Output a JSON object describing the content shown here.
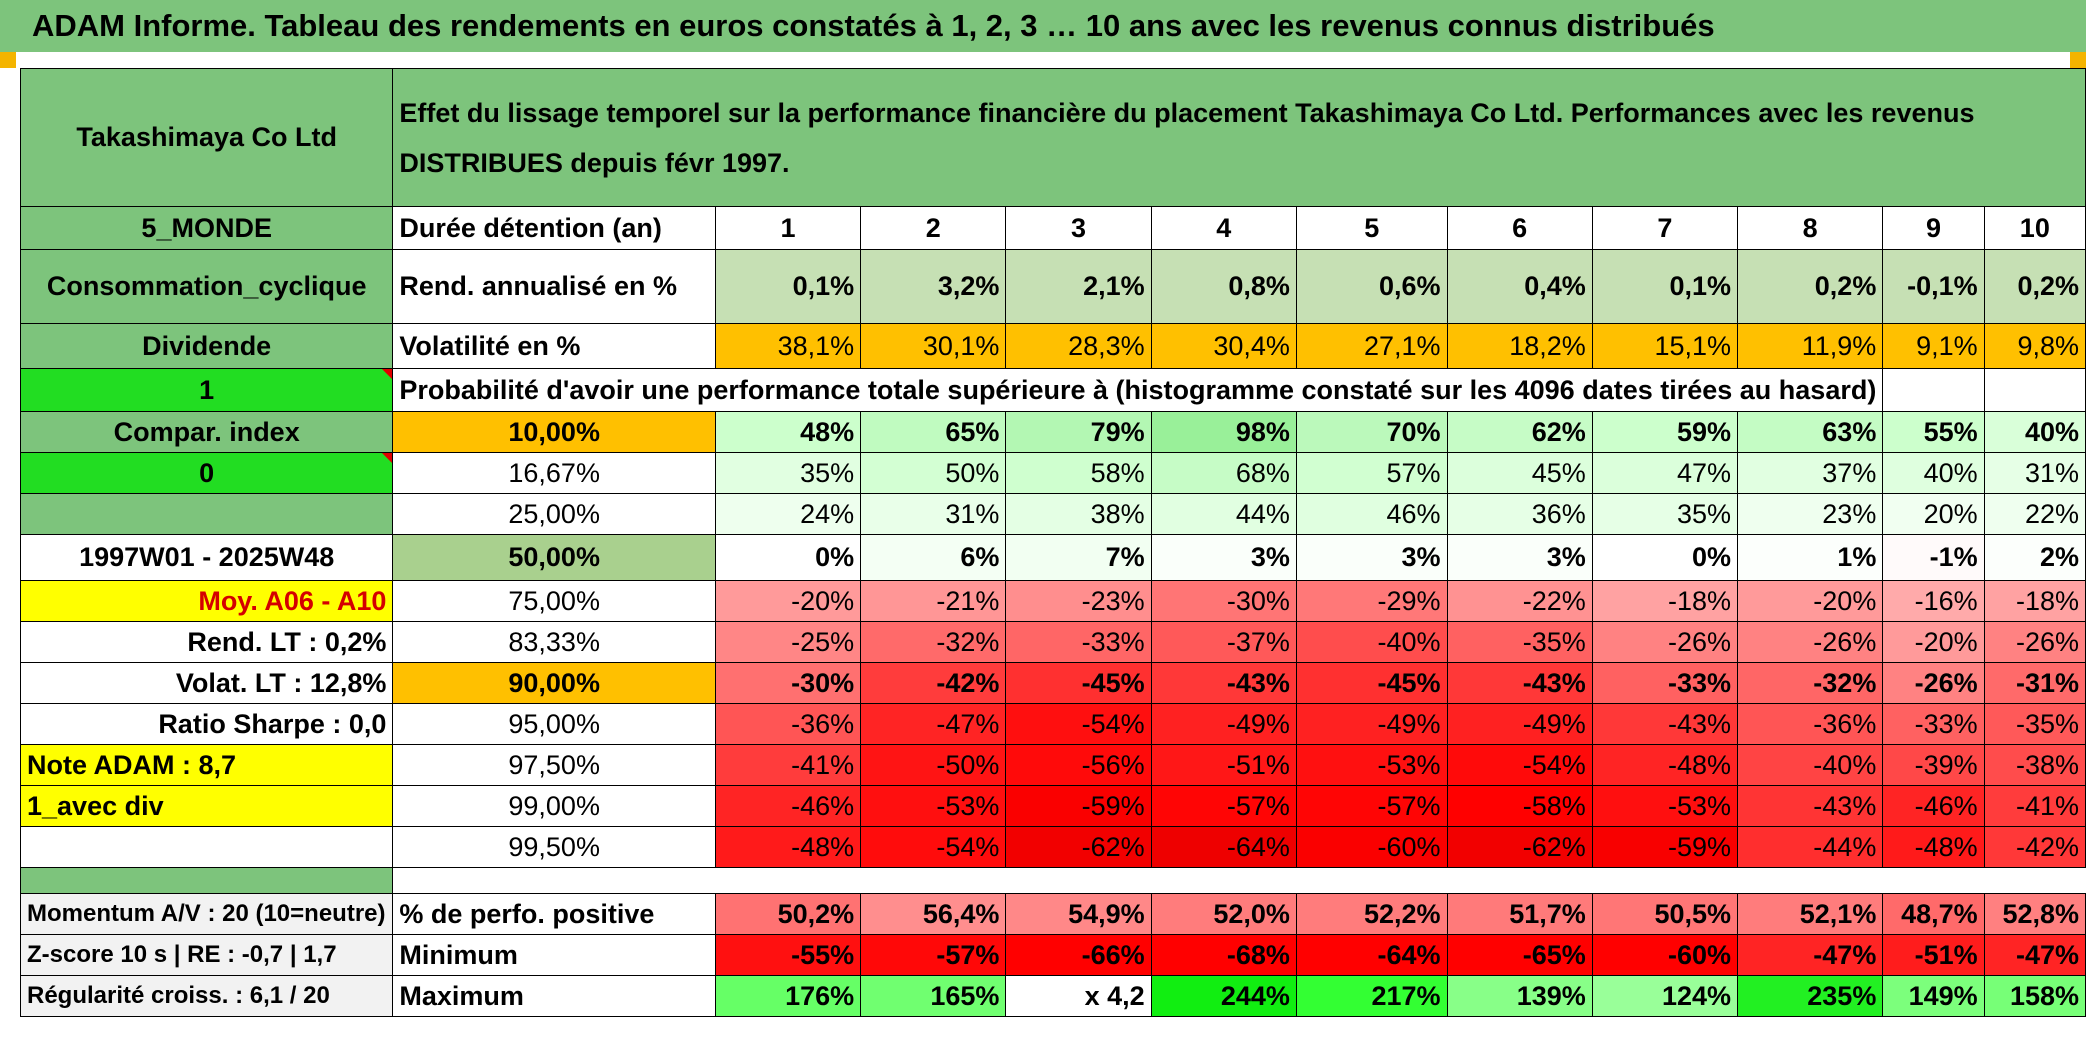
{
  "title": "ADAM Informe. Tableau des rendements en euros constatés à 1, 2, 3 … 10 ans avec les revenus connus distribués",
  "left": {
    "company": "Takashimaya Co Ltd",
    "zone": "5_MONDE",
    "sector": "Consommation_cyclique",
    "dividend_label": "Dividende",
    "flag1": "1",
    "compar": "Compar. index",
    "flag0": "0",
    "period": "1997W01 - 2025W48",
    "moy": "Moy. A06 - A10",
    "rend_lt": "Rend. LT :   0,2%",
    "volat_lt": "Volat. LT :   12,8%",
    "sharpe": "Ratio Sharpe :   0,0",
    "note": "Note ADAM : 8,7",
    "avec_div": "1_avec div",
    "momentum": "Momentum A/V : 20 (10=neutre)",
    "zscore": "Z-score 10 s | RE : -0,7 | 1,7",
    "regularite": "Régularité croiss. : 6,1 / 20"
  },
  "header": {
    "description": "Effet du lissage temporel sur la performance financière du placement Takashimaya Co Ltd. Performances avec les revenus DISTRIBUES depuis févr 1997.",
    "duree_label": "Durée détention (an)",
    "years": [
      "1",
      "2",
      "3",
      "4",
      "5",
      "6",
      "7",
      "8",
      "9",
      "10"
    ],
    "rend_label": "Rend. annualisé en %",
    "rend": [
      "0,1%",
      "3,2%",
      "2,1%",
      "0,8%",
      "0,6%",
      "0,4%",
      "0,1%",
      "0,2%",
      "-0,1%",
      "0,2%"
    ],
    "vol_label": "Volatilité en %",
    "vol": [
      "38,1%",
      "30,1%",
      "28,3%",
      "30,4%",
      "27,1%",
      "18,2%",
      "15,1%",
      "11,9%",
      "9,1%",
      "9,8%"
    ],
    "proba_label": "Probabilité d'avoir une performance totale supérieure à (histogramme constaté sur les 4096 dates tirées au hasard)"
  },
  "quantiles": [
    {
      "label": "10,00%",
      "values": [
        "48%",
        "65%",
        "79%",
        "98%",
        "70%",
        "62%",
        "59%",
        "63%",
        "55%",
        "40%"
      ]
    },
    {
      "label": "16,67%",
      "values": [
        "35%",
        "50%",
        "58%",
        "68%",
        "57%",
        "45%",
        "47%",
        "37%",
        "40%",
        "31%"
      ]
    },
    {
      "label": "25,00%",
      "values": [
        "24%",
        "31%",
        "38%",
        "44%",
        "46%",
        "36%",
        "35%",
        "23%",
        "20%",
        "22%"
      ]
    },
    {
      "label": "50,00%",
      "values": [
        "0%",
        "6%",
        "7%",
        "3%",
        "3%",
        "3%",
        "0%",
        "1%",
        "-1%",
        "2%"
      ]
    },
    {
      "label": "75,00%",
      "values": [
        "-20%",
        "-21%",
        "-23%",
        "-30%",
        "-29%",
        "-22%",
        "-18%",
        "-20%",
        "-16%",
        "-18%"
      ]
    },
    {
      "label": "83,33%",
      "values": [
        "-25%",
        "-32%",
        "-33%",
        "-37%",
        "-40%",
        "-35%",
        "-26%",
        "-26%",
        "-20%",
        "-26%"
      ]
    },
    {
      "label": "90,00%",
      "values": [
        "-30%",
        "-42%",
        "-45%",
        "-43%",
        "-45%",
        "-43%",
        "-33%",
        "-32%",
        "-26%",
        "-31%"
      ]
    },
    {
      "label": "95,00%",
      "values": [
        "-36%",
        "-47%",
        "-54%",
        "-49%",
        "-49%",
        "-49%",
        "-43%",
        "-36%",
        "-33%",
        "-35%"
      ]
    },
    {
      "label": "97,50%",
      "values": [
        "-41%",
        "-50%",
        "-56%",
        "-51%",
        "-53%",
        "-54%",
        "-48%",
        "-40%",
        "-39%",
        "-38%"
      ]
    },
    {
      "label": "99,00%",
      "values": [
        "-46%",
        "-53%",
        "-59%",
        "-57%",
        "-57%",
        "-58%",
        "-53%",
        "-43%",
        "-46%",
        "-41%"
      ]
    },
    {
      "label": "99,50%",
      "values": [
        "-48%",
        "-54%",
        "-62%",
        "-64%",
        "-60%",
        "-62%",
        "-59%",
        "-44%",
        "-48%",
        "-42%"
      ]
    }
  ],
  "stats": [
    {
      "label": "% de perfo. positive",
      "values": [
        "50,2%",
        "56,4%",
        "54,9%",
        "52,0%",
        "52,2%",
        "51,7%",
        "50,5%",
        "52,1%",
        "48,7%",
        "52,8%"
      ]
    },
    {
      "label": "Minimum",
      "values": [
        "-55%",
        "-57%",
        "-66%",
        "-68%",
        "-64%",
        "-65%",
        "-60%",
        "-47%",
        "-51%",
        "-47%"
      ]
    },
    {
      "label": "Maximum",
      "values": [
        "176%",
        "165%",
        "x 4,2",
        "244%",
        "217%",
        "139%",
        "124%",
        "235%",
        "149%",
        "158%"
      ]
    }
  ],
  "colors": {
    "title_green": "#7dc47c",
    "bright_green": "#22dd22",
    "yellow": "#ffff00",
    "orange": "#ffc000",
    "red_text": "#d40000",
    "q_bg": [
      [
        "#ccffcc",
        "#c0fbc0",
        "#b3f7b3",
        "#99f099",
        "#bbf9bb",
        "#c6fcc6",
        "#ccffcc",
        "#c4fcc4",
        "#ccffcc",
        "#d9ffd9"
      ],
      [
        "#e1ffe1",
        "#d3ffd3",
        "#cfffcf",
        "#c6fcc6",
        "#d1ffd1",
        "#dcffdc",
        "#dbffdb",
        "#e1ffe1",
        "#dfffdf",
        "#e6ffe6"
      ],
      [
        "#eeffee",
        "#e9ffe9",
        "#e4ffe4",
        "#e1ffe1",
        "#e0ffe0",
        "#e6ffe6",
        "#e6ffe6",
        "#efffef",
        "#f1fff1",
        "#efffef"
      ],
      [
        "#ffffff",
        "#f4fff4",
        "#f2fff2",
        "#fafffa",
        "#fafffa",
        "#fafffa",
        "#ffffff",
        "#fcfffc",
        "#fffafa",
        "#fcfffc"
      ],
      [
        "#ff9a9a",
        "#ff9696",
        "#ff8e8e",
        "#ff7575",
        "#ff7878",
        "#ff9292",
        "#ffa2a2",
        "#ff9a9a",
        "#ffaaaa",
        "#ffa2a2"
      ],
      [
        "#ff8686",
        "#ff6a6a",
        "#ff6666",
        "#ff5959",
        "#ff4d4d",
        "#ff6161",
        "#ff8282",
        "#ff8282",
        "#ff9a9a",
        "#ff8282"
      ],
      [
        "#ff7070",
        "#ff3c3c",
        "#ff3030",
        "#ff3838",
        "#ff3030",
        "#ff3838",
        "#ff6161",
        "#ff6666",
        "#ff8282",
        "#ff6a6a"
      ],
      [
        "#ff5555",
        "#ff2424",
        "#ff0f0f",
        "#ff2121",
        "#ff2121",
        "#ff2121",
        "#ff3838",
        "#ff5555",
        "#ff6161",
        "#ff5959"
      ],
      [
        "#ff3c3c",
        "#ff1414",
        "#ff0a0a",
        "#ff1717",
        "#ff1010",
        "#ff0a0a",
        "#ff2424",
        "#ff4444",
        "#ff4848",
        "#ff4c4c"
      ],
      [
        "#ff2424",
        "#ff0f0f",
        "#fa0000",
        "#ff0505",
        "#ff0505",
        "#ff0000",
        "#ff0f0f",
        "#ff3434",
        "#ff2424",
        "#ff3c3c"
      ],
      [
        "#ff1a1a",
        "#ff0c0c",
        "#f20000",
        "#ee0000",
        "#fa0000",
        "#f20000",
        "#f80000",
        "#ff2e2e",
        "#ff1a1a",
        "#ff3838"
      ]
    ],
    "s_bg": [
      [
        "#ff7272",
        "#ff8e8e",
        "#ff8888",
        "#ff7c7c",
        "#ff7c7c",
        "#ff7a7a",
        "#ff7676",
        "#ff7c7c",
        "#ff6a6a",
        "#ff8080"
      ],
      [
        "#ff1010",
        "#ff0808",
        "#ff0000",
        "#ff0000",
        "#ff0000",
        "#ff0000",
        "#ff0000",
        "#ff2424",
        "#ff1c1c",
        "#ff2424"
      ],
      [
        "#66ff66",
        "#70ff70",
        "#ffffff",
        "#11ee11",
        "#33ff33",
        "#88ff88",
        "#99ff99",
        "#22f022",
        "#7cff7c",
        "#77ff77"
      ]
    ]
  }
}
